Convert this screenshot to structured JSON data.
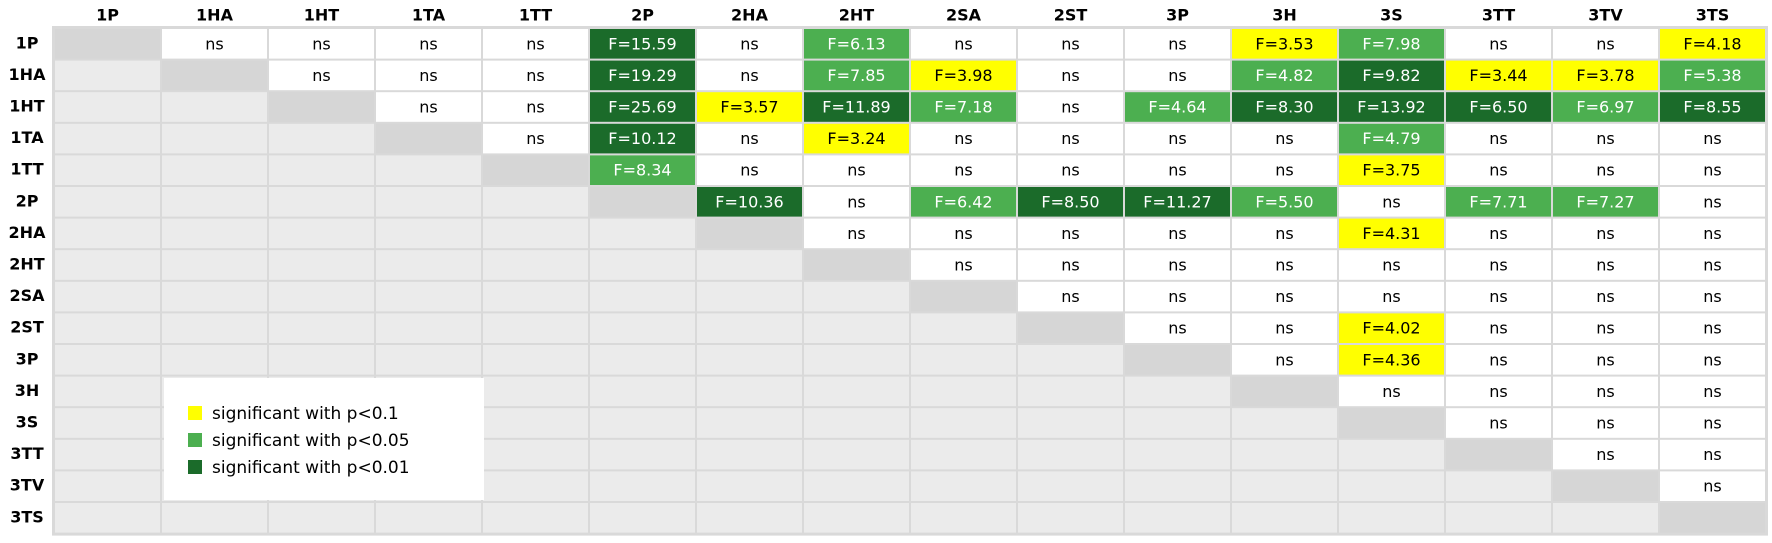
{
  "table": {
    "columns": [
      "1P",
      "1HA",
      "1HT",
      "1TA",
      "1TT",
      "2P",
      "2HA",
      "2HT",
      "2SA",
      "2ST",
      "3P",
      "3H",
      "3S",
      "3TT",
      "3TV",
      "3TS"
    ],
    "rows": [
      {
        "label": "1P",
        "cells": [
          {
            "text": "ns"
          },
          {
            "text": "ns"
          },
          {
            "text": "ns"
          },
          {
            "text": "ns"
          },
          {
            "text": "F=15.59",
            "level": 2
          },
          {
            "text": "ns"
          },
          {
            "text": "F=6.13",
            "level": 1
          },
          {
            "text": "ns"
          },
          {
            "text": "ns"
          },
          {
            "text": "ns"
          },
          {
            "text": "F=3.53",
            "level": 0
          },
          {
            "text": "F=7.98",
            "level": 1
          },
          {
            "text": "ns"
          },
          {
            "text": "ns"
          },
          {
            "text": "F=4.18",
            "level": 0
          }
        ]
      },
      {
        "label": "1HA",
        "cells": [
          {
            "text": "ns"
          },
          {
            "text": "ns"
          },
          {
            "text": "ns"
          },
          {
            "text": "F=19.29",
            "level": 2
          },
          {
            "text": "ns"
          },
          {
            "text": "F=7.85",
            "level": 1
          },
          {
            "text": "F=3.98",
            "level": 0
          },
          {
            "text": "ns"
          },
          {
            "text": "ns"
          },
          {
            "text": "F=4.82",
            "level": 1
          },
          {
            "text": "F=9.82",
            "level": 2
          },
          {
            "text": "F=3.44",
            "level": 0
          },
          {
            "text": "F=3.78",
            "level": 0
          },
          {
            "text": "F=5.38",
            "level": 1
          }
        ]
      },
      {
        "label": "1HT",
        "cells": [
          {
            "text": "ns"
          },
          {
            "text": "ns"
          },
          {
            "text": "F=25.69",
            "level": 2
          },
          {
            "text": "F=3.57",
            "level": 0
          },
          {
            "text": "F=11.89",
            "level": 2
          },
          {
            "text": "F=7.18",
            "level": 1
          },
          {
            "text": "ns"
          },
          {
            "text": "F=4.64",
            "level": 1
          },
          {
            "text": "F=8.30",
            "level": 2
          },
          {
            "text": "F=13.92",
            "level": 2
          },
          {
            "text": "F=6.50",
            "level": 2
          },
          {
            "text": "F=6.97",
            "level": 1
          },
          {
            "text": "F=8.55",
            "level": 2
          }
        ]
      },
      {
        "label": "1TA",
        "cells": [
          {
            "text": "ns"
          },
          {
            "text": "F=10.12",
            "level": 2
          },
          {
            "text": "ns"
          },
          {
            "text": "F=3.24",
            "level": 0
          },
          {
            "text": "ns"
          },
          {
            "text": "ns"
          },
          {
            "text": "ns"
          },
          {
            "text": "ns"
          },
          {
            "text": "F=4.79",
            "level": 1
          },
          {
            "text": "ns"
          },
          {
            "text": "ns"
          },
          {
            "text": "ns"
          }
        ]
      },
      {
        "label": "1TT",
        "cells": [
          {
            "text": "F=8.34",
            "level": 1
          },
          {
            "text": "ns"
          },
          {
            "text": "ns"
          },
          {
            "text": "ns"
          },
          {
            "text": "ns"
          },
          {
            "text": "ns"
          },
          {
            "text": "ns"
          },
          {
            "text": "F=3.75",
            "level": 0
          },
          {
            "text": "ns"
          },
          {
            "text": "ns"
          },
          {
            "text": "ns"
          }
        ]
      },
      {
        "label": "2P",
        "cells": [
          {
            "text": "F=10.36",
            "level": 2
          },
          {
            "text": "ns"
          },
          {
            "text": "F=6.42",
            "level": 1
          },
          {
            "text": "F=8.50",
            "level": 2
          },
          {
            "text": "F=11.27",
            "level": 2
          },
          {
            "text": "F=5.50",
            "level": 1
          },
          {
            "text": "ns"
          },
          {
            "text": "F=7.71",
            "level": 1
          },
          {
            "text": "F=7.27",
            "level": 1
          },
          {
            "text": "ns"
          }
        ]
      },
      {
        "label": "2HA",
        "cells": [
          {
            "text": "ns"
          },
          {
            "text": "ns"
          },
          {
            "text": "ns"
          },
          {
            "text": "ns"
          },
          {
            "text": "ns"
          },
          {
            "text": "F=4.31",
            "level": 0
          },
          {
            "text": "ns"
          },
          {
            "text": "ns"
          },
          {
            "text": "ns"
          }
        ]
      },
      {
        "label": "2HT",
        "cells": [
          {
            "text": "ns"
          },
          {
            "text": "ns"
          },
          {
            "text": "ns"
          },
          {
            "text": "ns"
          },
          {
            "text": "ns"
          },
          {
            "text": "ns"
          },
          {
            "text": "ns"
          },
          {
            "text": "ns"
          }
        ]
      },
      {
        "label": "2SA",
        "cells": [
          {
            "text": "ns"
          },
          {
            "text": "ns"
          },
          {
            "text": "ns"
          },
          {
            "text": "ns"
          },
          {
            "text": "ns"
          },
          {
            "text": "ns"
          },
          {
            "text": "ns"
          }
        ]
      },
      {
        "label": "2ST",
        "cells": [
          {
            "text": "ns"
          },
          {
            "text": "ns"
          },
          {
            "text": "F=4.02",
            "level": 0
          },
          {
            "text": "ns"
          },
          {
            "text": "ns"
          },
          {
            "text": "ns"
          }
        ]
      },
      {
        "label": "3P",
        "cells": [
          {
            "text": "ns"
          },
          {
            "text": "F=4.36",
            "level": 0
          },
          {
            "text": "ns"
          },
          {
            "text": "ns"
          },
          {
            "text": "ns"
          }
        ]
      },
      {
        "label": "3H",
        "cells": [
          {
            "text": "ns"
          },
          {
            "text": "ns"
          },
          {
            "text": "ns"
          },
          {
            "text": "ns"
          }
        ]
      },
      {
        "label": "3S",
        "cells": [
          {
            "text": "ns"
          },
          {
            "text": "ns"
          },
          {
            "text": "ns"
          }
        ]
      },
      {
        "label": "3TT",
        "cells": [
          {
            "text": "ns"
          },
          {
            "text": "ns"
          }
        ]
      },
      {
        "label": "3TV",
        "cells": [
          {
            "text": "ns"
          }
        ]
      },
      {
        "label": "3TS",
        "cells": []
      }
    ]
  },
  "legend": [
    {
      "label": "significant with p<0.1",
      "color": "#ffff00"
    },
    {
      "label": "significant with p<0.05",
      "color": "#4caf50"
    },
    {
      "label": "significant with p<0.01",
      "color": "#1b6b2a"
    }
  ]
}
